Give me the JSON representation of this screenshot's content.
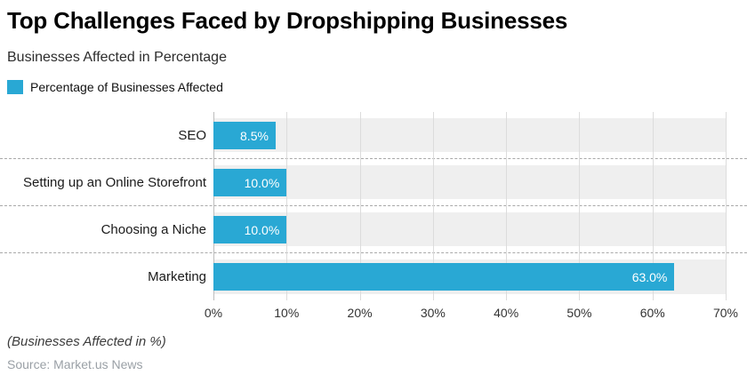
{
  "header": {
    "title": "Top Challenges Faced by Dropshipping Businesses",
    "subtitle": "Businesses Affected in Percentage"
  },
  "legend": {
    "label": "Percentage of Businesses Affected"
  },
  "chart_data": {
    "type": "bar",
    "orientation": "horizontal",
    "title": "Top Challenges Faced by Dropshipping Businesses",
    "subtitle": "Businesses Affected in Percentage",
    "series_name": "Percentage of Businesses Affected",
    "categories": [
      "SEO",
      "Setting up an Online Storefront",
      "Choosing a Niche",
      "Marketing"
    ],
    "values": [
      8.5,
      10.0,
      10.0,
      63.0
    ],
    "value_labels": [
      "8.5%",
      "10.0%",
      "10.0%",
      "63.0%"
    ],
    "x_ticks": [
      "0%",
      "10%",
      "20%",
      "30%",
      "40%",
      "50%",
      "60%",
      "70%"
    ],
    "xlim": [
      0,
      70
    ],
    "grid": true,
    "legend_position": "top-left",
    "bar_color": "#29A8D4",
    "band_color": "#efefef"
  },
  "footer": {
    "note": "(Businesses Affected in %)",
    "source": "Source: Market.us News"
  }
}
